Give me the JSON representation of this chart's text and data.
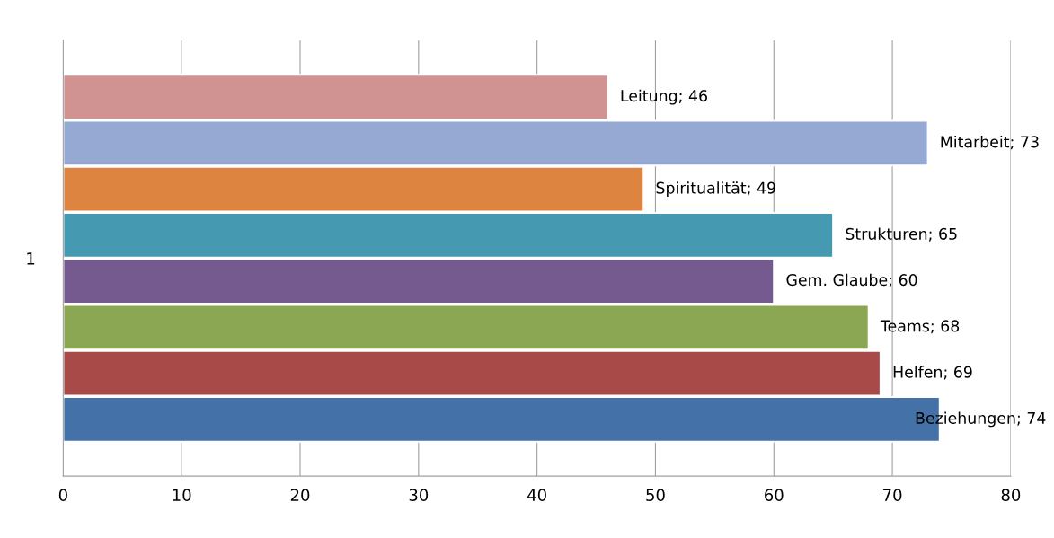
{
  "chart_data": {
    "type": "bar",
    "orientation": "horizontal",
    "categories": [
      "1"
    ],
    "series": [
      {
        "color": "#d09392",
        "values": [
          46
        ],
        "value_labels": [
          "Leitung; 46"
        ]
      },
      {
        "color": "#95a9d3",
        "values": [
          73
        ],
        "value_labels": [
          "Mitarbeit; 73"
        ]
      },
      {
        "color": "#dd8540",
        "values": [
          49
        ],
        "value_labels": [
          "Spiritualität; 49"
        ]
      },
      {
        "color": "#4599b0",
        "values": [
          65
        ],
        "value_labels": [
          "Strukturen; 65"
        ]
      },
      {
        "color": "#745a8e",
        "values": [
          60
        ],
        "value_labels": [
          "Gem. Glaube; 60"
        ]
      },
      {
        "color": "#8ba753",
        "values": [
          68
        ],
        "value_labels": [
          "Teams; 68"
        ]
      },
      {
        "color": "#a84a47",
        "values": [
          69
        ],
        "value_labels": [
          "Helfen; 69"
        ]
      },
      {
        "color": "#4472a8",
        "values": [
          74
        ],
        "value_labels": [
          "Beziehungen; 74"
        ]
      }
    ],
    "xlim": [
      0,
      80
    ],
    "xticks": [
      0,
      10,
      20,
      30,
      40,
      50,
      60,
      70,
      80
    ],
    "grid": "x",
    "legend": false
  }
}
